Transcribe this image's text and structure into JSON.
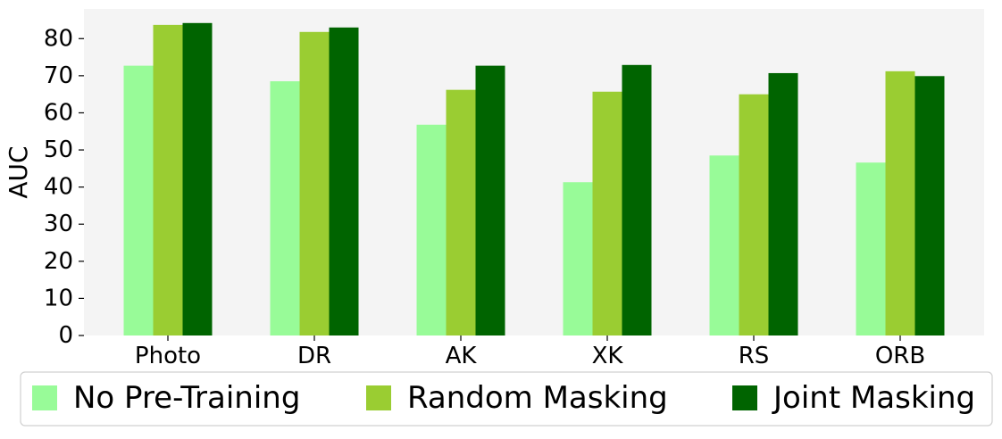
{
  "chart_data": {
    "type": "bar",
    "title": "",
    "xlabel": "",
    "ylabel": "AUC",
    "categories": [
      "Photo",
      "DR",
      "AK",
      "XK",
      "RS",
      "ORB"
    ],
    "ylim": [
      0,
      88
    ],
    "yticks": [
      0,
      10,
      20,
      30,
      40,
      50,
      60,
      70,
      80
    ],
    "yticks_text": [
      "0",
      "10",
      "20",
      "30",
      "40",
      "50",
      "60",
      "70",
      "80"
    ],
    "grid": false,
    "background": "#f4f4f4",
    "legend_position": "bottom",
    "series": [
      {
        "name": "No Pre-Training",
        "color": "#98fb98",
        "values": [
          72.7,
          68.5,
          56.8,
          41.3,
          48.5,
          46.6
        ]
      },
      {
        "name": "Random Masking",
        "color": "#9acd32",
        "values": [
          83.7,
          81.8,
          66.2,
          65.7,
          65.0,
          71.2
        ]
      },
      {
        "name": "Joint Masking",
        "color": "#006400",
        "values": [
          84.2,
          83.0,
          72.7,
          72.9,
          70.7,
          69.9
        ]
      }
    ]
  }
}
